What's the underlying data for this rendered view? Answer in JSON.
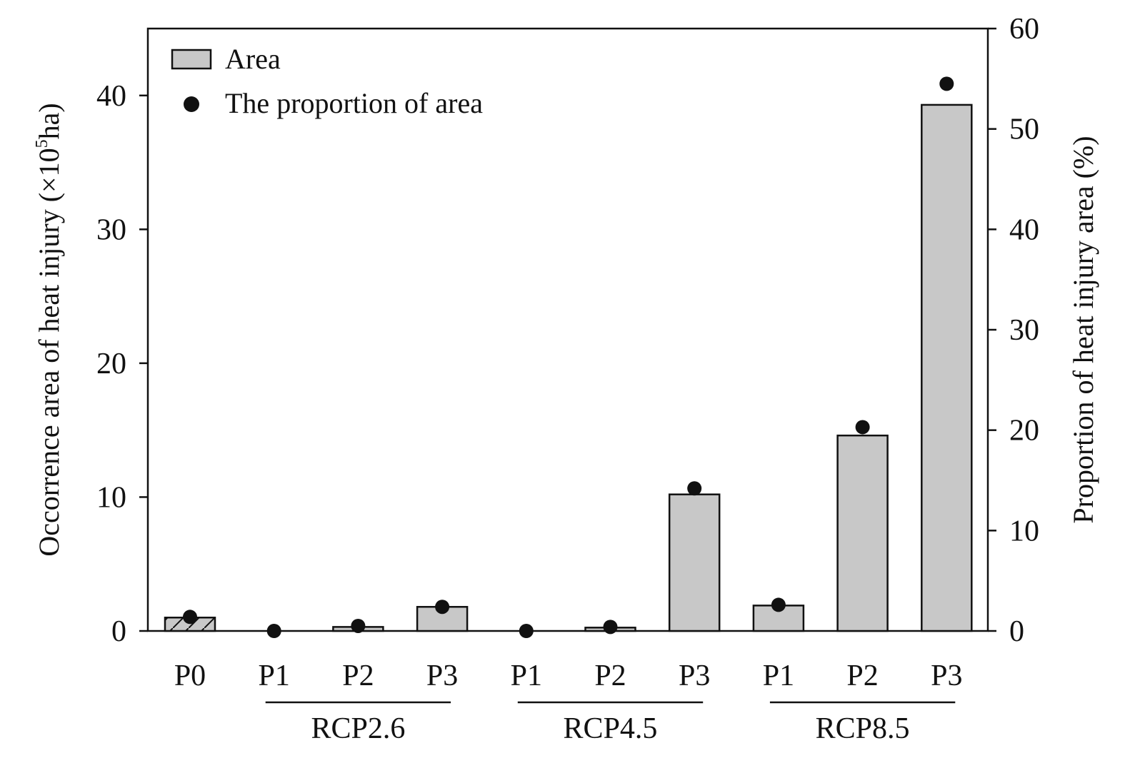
{
  "chart_data": {
    "type": "bar",
    "categories": [
      "P0",
      "P1",
      "P2",
      "P3",
      "P1",
      "P2",
      "P3",
      "P1",
      "P2",
      "P3"
    ],
    "groups": [
      {
        "label": "RCP2.6",
        "members": [
          1,
          2,
          3
        ]
      },
      {
        "label": "RCP4.5",
        "members": [
          4,
          5,
          6
        ]
      },
      {
        "label": "RCP8.5",
        "members": [
          7,
          8,
          9
        ]
      }
    ],
    "series": [
      {
        "name": "Area",
        "kind": "bar",
        "axis": "left",
        "values": [
          1.0,
          0.0,
          0.3,
          1.8,
          0.0,
          0.25,
          10.2,
          1.9,
          14.6,
          39.3
        ],
        "hatched": [
          true,
          false,
          false,
          false,
          false,
          false,
          false,
          false,
          false,
          false
        ]
      },
      {
        "name": "The proportion of area",
        "kind": "scatter",
        "axis": "right",
        "values": [
          1.4,
          0.0,
          0.5,
          2.4,
          0.0,
          0.4,
          14.2,
          2.6,
          20.3,
          54.5
        ]
      }
    ],
    "ylabel_left_parts": {
      "main": "Occorrence area of heat injury (×10",
      "sup": "5",
      "tail": "ha)"
    },
    "ylabel_right": "Proportion of heat injury area (%)",
    "ylim_left": [
      0,
      45
    ],
    "yticks_left": [
      0,
      10,
      20,
      30,
      40
    ],
    "ylim_right": [
      0,
      60
    ],
    "yticks_right": [
      0,
      10,
      20,
      30,
      40,
      50,
      60
    ],
    "legend_position": "top-left",
    "grid": false,
    "colors": {
      "bar_fill": "#c8c8c8",
      "bar_stroke": "#111111",
      "point": "#111111"
    }
  }
}
